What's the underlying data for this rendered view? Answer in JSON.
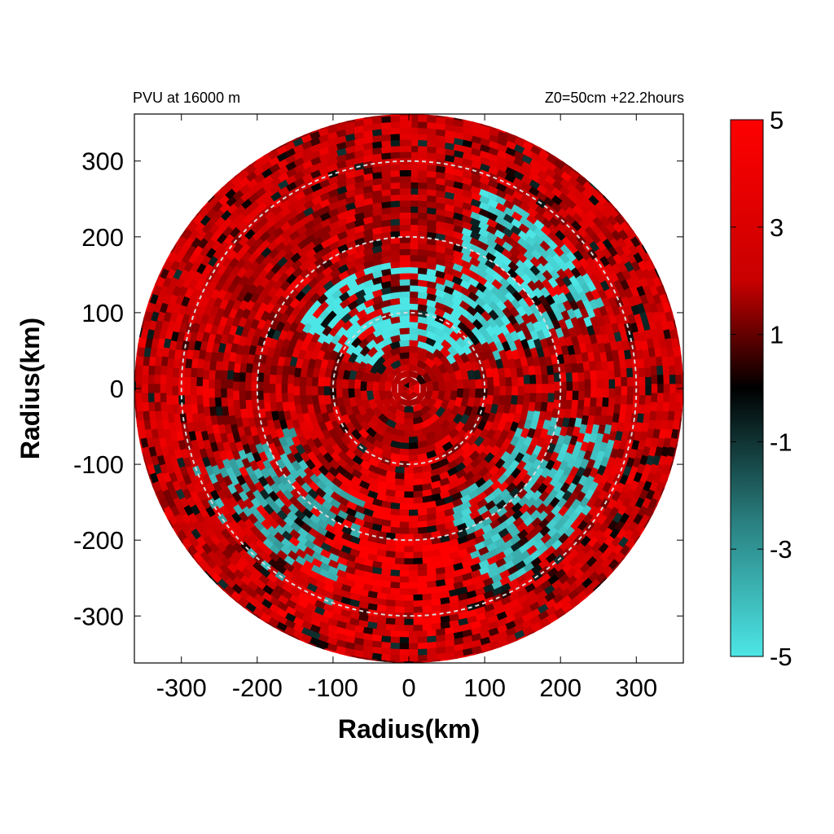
{
  "chart_data": {
    "type": "heatmap",
    "title_left": "PVU at 16000 m",
    "title_right": "Z0=50cm  +22.2hours",
    "xlabel": "Radius(km)",
    "ylabel": "Radius(km)",
    "xlim": [
      -362,
      362
    ],
    "ylim": [
      -362,
      362
    ],
    "xticks": [
      -300,
      -200,
      -100,
      0,
      100,
      200,
      300
    ],
    "yticks": [
      300,
      200,
      100,
      0,
      -100,
      -200,
      -300
    ],
    "xtick_labels": [
      "-300",
      "-200",
      "-100",
      "0",
      "100",
      "200",
      "300"
    ],
    "ytick_labels": [
      "300",
      "200",
      "100",
      "0",
      "-100",
      "-200",
      "-300"
    ],
    "domain_radius": 362,
    "range_rings": [
      100,
      200,
      300
    ],
    "colorbar": {
      "range": [
        -5,
        5
      ],
      "ticks": [
        5,
        3,
        1,
        -1,
        -3,
        -5
      ],
      "tick_labels": [
        "5",
        "3",
        "1",
        "-1",
        "-3",
        "-5"
      ],
      "colors": {
        "high": "#ff0000",
        "mid": "#000000",
        "low": "#4de6e6"
      }
    },
    "regions": [
      {
        "desc": "inner-core mixed",
        "r": [
          0,
          90
        ],
        "az": [
          0,
          360
        ],
        "value": 3.0
      },
      {
        "desc": "cyan band east",
        "r": [
          60,
          170
        ],
        "az": [
          300,
          60
        ],
        "value": -5.0
      },
      {
        "desc": "cyan band northeast",
        "r": [
          120,
          280
        ],
        "az": [
          20,
          70
        ],
        "value": -4.5
      },
      {
        "desc": "cyan band southeast",
        "r": [
          150,
          290
        ],
        "az": [
          100,
          160
        ],
        "value": -4.0
      },
      {
        "desc": "cyan patches southwest",
        "r": [
          160,
          300
        ],
        "az": [
          200,
          250
        ],
        "value": -3.5
      },
      {
        "desc": "red south",
        "r": [
          90,
          340
        ],
        "az": [
          160,
          210
        ],
        "value": 5.0
      },
      {
        "desc": "outer ring",
        "r": [
          280,
          362
        ],
        "az": [
          0,
          360
        ],
        "value": 4.0
      }
    ]
  }
}
